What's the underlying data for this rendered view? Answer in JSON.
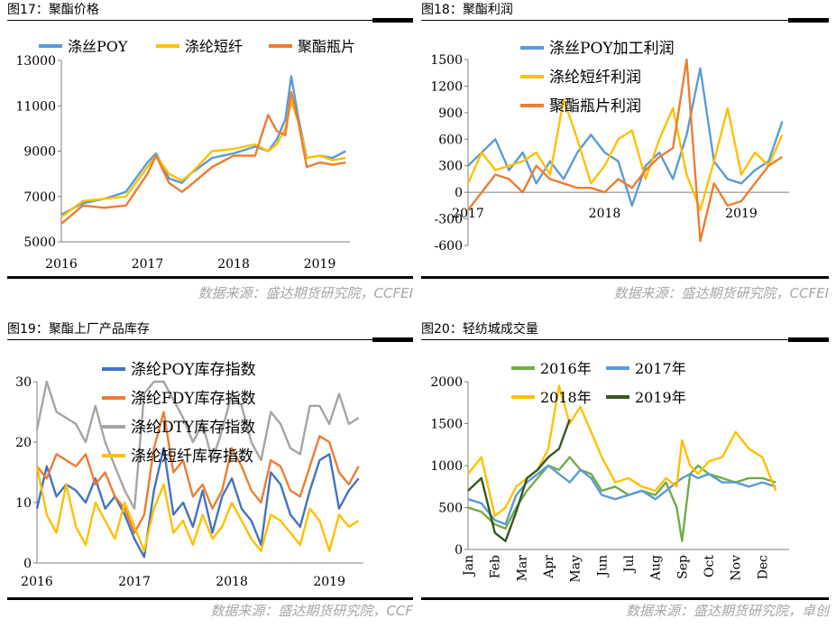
{
  "panels": [
    {
      "title": "图17：聚酯价格",
      "source": "数据来源：盛达期货研究院，CCFEI"
    },
    {
      "title": "图18：聚酯利润",
      "source": "数据来源：盛达期货研究院，CCFEI"
    },
    {
      "title": "图19：聚酯上厂产品库存",
      "source": "数据来源：盛达期货研究院，CCF"
    },
    {
      "title": "图20：轻纺城成交量",
      "source": "数据来源：盛达期货研究院，卓创"
    }
  ],
  "chart_data": [
    {
      "type": "line",
      "ylim": [
        5000,
        13000
      ],
      "yticks": [
        "5000",
        "7000",
        "9000",
        "11000",
        "13000"
      ],
      "xticks": [
        "2016",
        "2017",
        "2018",
        "2019"
      ],
      "x": [
        2016.0,
        2016.25,
        2016.5,
        2016.75,
        2017.0,
        2017.1,
        2017.25,
        2017.4,
        2017.5,
        2017.75,
        2018.0,
        2018.25,
        2018.4,
        2018.5,
        2018.6,
        2018.67,
        2018.75,
        2018.85,
        2019.0,
        2019.15,
        2019.3
      ],
      "series": [
        {
          "name": "涤丝POY",
          "color": "#5b9bd5",
          "values": [
            6200,
            6700,
            6900,
            7200,
            8500,
            8900,
            7800,
            7600,
            8000,
            8700,
            8900,
            9200,
            9000,
            9500,
            10400,
            12300,
            10500,
            8700,
            8800,
            8700,
            9000
          ]
        },
        {
          "name": "涤纶短纤",
          "color": "#ffc000",
          "values": [
            6100,
            6800,
            6900,
            7000,
            8300,
            8800,
            8000,
            7700,
            8000,
            9000,
            9100,
            9300,
            9000,
            9300,
            10000,
            11200,
            10300,
            8700,
            8800,
            8600,
            8700
          ]
        },
        {
          "name": "聚酯瓶片",
          "color": "#ed7d31",
          "values": [
            5800,
            6600,
            6500,
            6600,
            8000,
            8800,
            7600,
            7200,
            7500,
            8300,
            8800,
            8800,
            10600,
            9900,
            9700,
            11600,
            10300,
            8300,
            8500,
            8400,
            8500
          ]
        }
      ]
    },
    {
      "type": "line",
      "ylim": [
        -600,
        1500
      ],
      "yticks": [
        "-600",
        "-300",
        "0",
        "300",
        "600",
        "900",
        "1200",
        "1500"
      ],
      "xticks": [
        "2017",
        "2018",
        "2019"
      ],
      "x": [
        2017.0,
        2017.1,
        2017.2,
        2017.3,
        2017.4,
        2017.5,
        2017.6,
        2017.7,
        2017.8,
        2017.9,
        2018.0,
        2018.1,
        2018.2,
        2018.3,
        2018.4,
        2018.5,
        2018.6,
        2018.7,
        2018.8,
        2018.9,
        2019.0,
        2019.1,
        2019.2,
        2019.3
      ],
      "series": [
        {
          "name": "涤丝POY加工利润",
          "color": "#5b9bd5",
          "values": [
            300,
            450,
            600,
            250,
            450,
            100,
            350,
            150,
            450,
            650,
            450,
            350,
            -150,
            300,
            450,
            150,
            650,
            1400,
            350,
            150,
            100,
            250,
            350,
            800
          ]
        },
        {
          "name": "涤纶短纤利润",
          "color": "#ffc000",
          "values": [
            100,
            450,
            250,
            300,
            350,
            450,
            200,
            1050,
            600,
            100,
            300,
            600,
            700,
            150,
            600,
            950,
            200,
            -200,
            350,
            950,
            200,
            450,
            300,
            650
          ]
        },
        {
          "name": "聚酯瓶片利润",
          "color": "#ed7d31",
          "values": [
            -200,
            0,
            200,
            150,
            0,
            300,
            150,
            100,
            50,
            50,
            0,
            150,
            50,
            250,
            400,
            500,
            1500,
            -550,
            100,
            -150,
            -100,
            100,
            300,
            400
          ]
        }
      ]
    },
    {
      "type": "line",
      "ylim": [
        0,
        30
      ],
      "yticks": [
        "0",
        "10",
        "20",
        "30"
      ],
      "xticks": [
        "2016",
        "2017",
        "2018",
        "2019"
      ],
      "x": [
        2016.0,
        2016.1,
        2016.2,
        2016.3,
        2016.4,
        2016.5,
        2016.6,
        2016.7,
        2016.8,
        2016.9,
        2017.0,
        2017.1,
        2017.2,
        2017.3,
        2017.4,
        2017.5,
        2017.6,
        2017.7,
        2017.8,
        2017.9,
        2018.0,
        2018.1,
        2018.2,
        2018.3,
        2018.4,
        2018.5,
        2018.6,
        2018.7,
        2018.8,
        2018.9,
        2019.0,
        2019.1,
        2019.2,
        2019.3
      ],
      "series": [
        {
          "name": "涤纶POY库存指数",
          "color": "#4472c4",
          "values": [
            9,
            16,
            11,
            13,
            12,
            10,
            14,
            9,
            11,
            8,
            4,
            1,
            12,
            19,
            8,
            10,
            6,
            12,
            5,
            11,
            14,
            9,
            7,
            3,
            15,
            13,
            8,
            6,
            12,
            17,
            18,
            9,
            12,
            14
          ]
        },
        {
          "name": "涤纶FDY库存指数",
          "color": "#ed7d31",
          "values": [
            16,
            14,
            18,
            17,
            16,
            18,
            13,
            15,
            11,
            9,
            5,
            8,
            19,
            25,
            15,
            17,
            11,
            13,
            9,
            12,
            19,
            16,
            12,
            10,
            17,
            16,
            12,
            11,
            16,
            21,
            20,
            15,
            13,
            16
          ]
        },
        {
          "name": "涤纶DTY库存指数",
          "color": "#a5a5a5",
          "values": [
            22,
            30,
            25,
            24,
            23,
            20,
            26,
            20,
            16,
            12,
            9,
            28,
            30,
            30,
            27,
            24,
            20,
            23,
            17,
            22,
            28,
            26,
            20,
            17,
            25,
            23,
            19,
            18,
            26,
            26,
            23,
            28,
            23,
            24
          ]
        },
        {
          "name": "涤纶短纤库存指数",
          "color": "#ffc000",
          "values": [
            16,
            8,
            5,
            13,
            6,
            3,
            10,
            7,
            4,
            10,
            6,
            2,
            9,
            13,
            5,
            7,
            3,
            8,
            4,
            6,
            10,
            7,
            4,
            2,
            8,
            7,
            5,
            3,
            9,
            7,
            2,
            8,
            6,
            7
          ]
        }
      ]
    },
    {
      "type": "line",
      "ylim": [
        0,
        2000
      ],
      "yticks": [
        "0",
        "500",
        "1000",
        "1500",
        "2000"
      ],
      "xticks": [
        "Jan",
        "Feb",
        "Mar",
        "Apr",
        "May",
        "Jun",
        "Jul",
        "Aug",
        "Sep",
        "Oct",
        "Nov",
        "Dec"
      ],
      "x": [
        1,
        1.5,
        2,
        2.4,
        2.8,
        3.2,
        3.6,
        4,
        4.4,
        4.8,
        5.2,
        5.6,
        6,
        6.5,
        7,
        7.5,
        8,
        8.4,
        8.8,
        9,
        9.3,
        9.6,
        10,
        10.5,
        11,
        11.5,
        12,
        12.5
      ],
      "series": [
        {
          "name": "2016年",
          "color": "#70ad47",
          "values": [
            500,
            450,
            300,
            250,
            500,
            700,
            850,
            1000,
            950,
            1100,
            950,
            900,
            700,
            750,
            650,
            700,
            650,
            800,
            500,
            100,
            900,
            1000,
            900,
            850,
            800,
            850,
            850,
            800
          ]
        },
        {
          "name": "2017年",
          "color": "#5b9bd5",
          "values": [
            600,
            550,
            350,
            300,
            650,
            800,
            900,
            1000,
            900,
            800,
            950,
            850,
            650,
            600,
            650,
            700,
            600,
            700,
            800,
            850,
            900,
            850,
            900,
            800,
            800,
            750,
            800,
            750
          ]
        },
        {
          "name": "2018年",
          "color": "#ffc000",
          "values": [
            900,
            1100,
            400,
            500,
            750,
            850,
            950,
            1200,
            1950,
            1500,
            1700,
            1400,
            1100,
            800,
            850,
            750,
            700,
            850,
            750,
            1300,
            1000,
            900,
            1050,
            1100,
            1400,
            1200,
            1100,
            700
          ]
        },
        {
          "name": "2019年",
          "color": "#375623",
          "values": [
            700,
            850,
            200,
            100,
            450,
            850,
            950,
            1100,
            1200,
            1550,
            null,
            null,
            null,
            null,
            null,
            null,
            null,
            null,
            null,
            null,
            null,
            null,
            null,
            null,
            null,
            null,
            null,
            null
          ]
        }
      ]
    }
  ]
}
